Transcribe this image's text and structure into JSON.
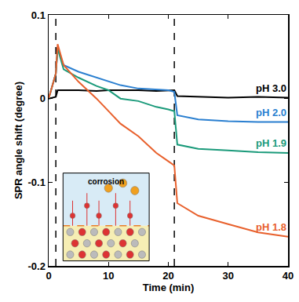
{
  "chart_data": {
    "type": "line",
    "xlabel": "Time (min)",
    "ylabel": "SPR angle shift (degree)",
    "xlim": [
      0,
      40
    ],
    "xticks": [
      0,
      10,
      20,
      30,
      40
    ],
    "ylim": [
      -0.2,
      0.1
    ],
    "yticks": [
      -0.2,
      -0.1,
      0,
      0.1
    ],
    "grid": false,
    "vertical_lines": [
      1.2,
      21
    ],
    "inset": {
      "text": "corrosion"
    },
    "x": [
      0,
      1.2,
      1.5,
      2.5,
      5,
      8,
      10,
      12,
      15,
      18,
      20,
      21,
      21.5,
      25,
      30,
      35,
      40
    ],
    "series": [
      {
        "name": "pH 3.0",
        "color": "#000000",
        "values": [
          0,
          0.002,
          0.01,
          0.01,
          0.01,
          0.009,
          0.01,
          0.01,
          0.01,
          0.009,
          0.01,
          0.01,
          0.003,
          0.002,
          0.001,
          0.002,
          0.001
        ]
      },
      {
        "name": "pH 2.0",
        "color": "#2a7fd0",
        "values": [
          0,
          0.03,
          0.06,
          0.04,
          0.032,
          0.025,
          0.02,
          0.016,
          0.012,
          0.011,
          0.01,
          0.008,
          -0.02,
          -0.025,
          -0.027,
          -0.028,
          -0.028
        ]
      },
      {
        "name": "pH 1.9",
        "color": "#1a9a7a",
        "values": [
          0,
          0.03,
          0.06,
          0.035,
          0.025,
          0.015,
          0.01,
          0.0,
          -0.003,
          -0.01,
          -0.013,
          -0.015,
          -0.055,
          -0.06,
          -0.062,
          -0.064,
          -0.065
        ]
      },
      {
        "name": "pH 1.8",
        "color": "#e8602c",
        "values": [
          0,
          0.03,
          0.065,
          0.04,
          0.02,
          0.0,
          -0.015,
          -0.03,
          -0.045,
          -0.065,
          -0.075,
          -0.08,
          -0.125,
          -0.14,
          -0.15,
          -0.16,
          -0.165
        ]
      }
    ]
  }
}
